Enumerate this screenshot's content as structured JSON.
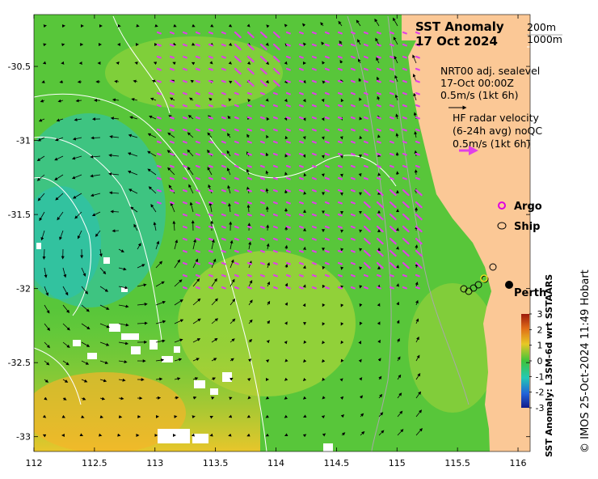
{
  "title": {
    "line1": "SST Anomaly",
    "line2": "17 Oct 2024",
    "contour1": "200m",
    "contour2": "1000m"
  },
  "altimetry": {
    "line1": "NRT00 adj. sealevel",
    "line2": "17-Oct 00:00Z",
    "line3": "0.5m/s (1kt 6h)"
  },
  "hf_radar": {
    "line1": "HF radar velocity",
    "line2": "(6-24h avg) noQC",
    "line3": "0.5m/s (1kt 6h)"
  },
  "markers": {
    "argo": "Argo",
    "ship": "Ship",
    "city": "Perth"
  },
  "colorbar": {
    "label": "SST Anomaly: L3SM-6d wrt SSTAARS",
    "ticks": [
      "3",
      "2",
      "1",
      "0",
      "-1",
      "-2",
      "-3"
    ],
    "range": [
      -3,
      3
    ]
  },
  "credit": "© IMOS 25-Oct-2024 11:49 Hobart",
  "axes": {
    "x_ticks": [
      "112",
      "112.5",
      "113",
      "113.5",
      "114",
      "114.5",
      "115",
      "115.5",
      "116"
    ],
    "y_ticks": [
      "-30.5",
      "-31",
      "-31.5",
      "-32",
      "-32.5",
      "-33"
    ],
    "lon_range": [
      112,
      116.1
    ],
    "lat_range": [
      -33.1,
      -30.15
    ]
  },
  "colors": {
    "land": "#fbc896",
    "hf_arrow": "#e040e8",
    "argo": "#e000e0",
    "contour_200": "#b0b0b0",
    "contour_1000": "#ffffff"
  }
}
